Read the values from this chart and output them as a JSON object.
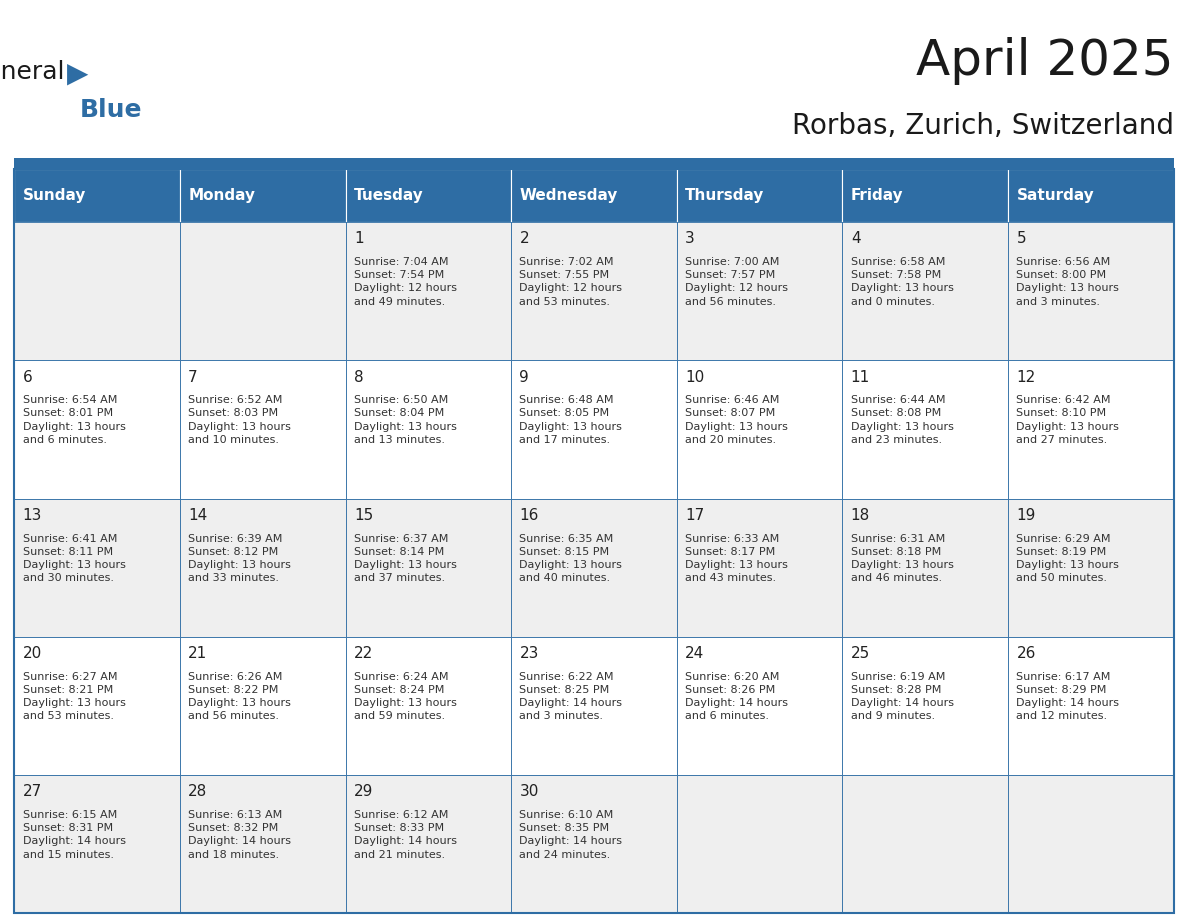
{
  "title": "April 2025",
  "subtitle": "Rorbas, Zurich, Switzerland",
  "header_color": "#2E6DA4",
  "header_text_color": "#FFFFFF",
  "cell_bg_even": "#EFEFEF",
  "cell_bg_odd": "#FFFFFF",
  "border_color": "#2E6DA4",
  "text_color": "#222222",
  "info_color": "#333333",
  "days_of_week": [
    "Sunday",
    "Monday",
    "Tuesday",
    "Wednesday",
    "Thursday",
    "Friday",
    "Saturday"
  ],
  "weeks": [
    [
      {
        "day": "",
        "info": ""
      },
      {
        "day": "",
        "info": ""
      },
      {
        "day": "1",
        "info": "Sunrise: 7:04 AM\nSunset: 7:54 PM\nDaylight: 12 hours\nand 49 minutes."
      },
      {
        "day": "2",
        "info": "Sunrise: 7:02 AM\nSunset: 7:55 PM\nDaylight: 12 hours\nand 53 minutes."
      },
      {
        "day": "3",
        "info": "Sunrise: 7:00 AM\nSunset: 7:57 PM\nDaylight: 12 hours\nand 56 minutes."
      },
      {
        "day": "4",
        "info": "Sunrise: 6:58 AM\nSunset: 7:58 PM\nDaylight: 13 hours\nand 0 minutes."
      },
      {
        "day": "5",
        "info": "Sunrise: 6:56 AM\nSunset: 8:00 PM\nDaylight: 13 hours\nand 3 minutes."
      }
    ],
    [
      {
        "day": "6",
        "info": "Sunrise: 6:54 AM\nSunset: 8:01 PM\nDaylight: 13 hours\nand 6 minutes."
      },
      {
        "day": "7",
        "info": "Sunrise: 6:52 AM\nSunset: 8:03 PM\nDaylight: 13 hours\nand 10 minutes."
      },
      {
        "day": "8",
        "info": "Sunrise: 6:50 AM\nSunset: 8:04 PM\nDaylight: 13 hours\nand 13 minutes."
      },
      {
        "day": "9",
        "info": "Sunrise: 6:48 AM\nSunset: 8:05 PM\nDaylight: 13 hours\nand 17 minutes."
      },
      {
        "day": "10",
        "info": "Sunrise: 6:46 AM\nSunset: 8:07 PM\nDaylight: 13 hours\nand 20 minutes."
      },
      {
        "day": "11",
        "info": "Sunrise: 6:44 AM\nSunset: 8:08 PM\nDaylight: 13 hours\nand 23 minutes."
      },
      {
        "day": "12",
        "info": "Sunrise: 6:42 AM\nSunset: 8:10 PM\nDaylight: 13 hours\nand 27 minutes."
      }
    ],
    [
      {
        "day": "13",
        "info": "Sunrise: 6:41 AM\nSunset: 8:11 PM\nDaylight: 13 hours\nand 30 minutes."
      },
      {
        "day": "14",
        "info": "Sunrise: 6:39 AM\nSunset: 8:12 PM\nDaylight: 13 hours\nand 33 minutes."
      },
      {
        "day": "15",
        "info": "Sunrise: 6:37 AM\nSunset: 8:14 PM\nDaylight: 13 hours\nand 37 minutes."
      },
      {
        "day": "16",
        "info": "Sunrise: 6:35 AM\nSunset: 8:15 PM\nDaylight: 13 hours\nand 40 minutes."
      },
      {
        "day": "17",
        "info": "Sunrise: 6:33 AM\nSunset: 8:17 PM\nDaylight: 13 hours\nand 43 minutes."
      },
      {
        "day": "18",
        "info": "Sunrise: 6:31 AM\nSunset: 8:18 PM\nDaylight: 13 hours\nand 46 minutes."
      },
      {
        "day": "19",
        "info": "Sunrise: 6:29 AM\nSunset: 8:19 PM\nDaylight: 13 hours\nand 50 minutes."
      }
    ],
    [
      {
        "day": "20",
        "info": "Sunrise: 6:27 AM\nSunset: 8:21 PM\nDaylight: 13 hours\nand 53 minutes."
      },
      {
        "day": "21",
        "info": "Sunrise: 6:26 AM\nSunset: 8:22 PM\nDaylight: 13 hours\nand 56 minutes."
      },
      {
        "day": "22",
        "info": "Sunrise: 6:24 AM\nSunset: 8:24 PM\nDaylight: 13 hours\nand 59 minutes."
      },
      {
        "day": "23",
        "info": "Sunrise: 6:22 AM\nSunset: 8:25 PM\nDaylight: 14 hours\nand 3 minutes."
      },
      {
        "day": "24",
        "info": "Sunrise: 6:20 AM\nSunset: 8:26 PM\nDaylight: 14 hours\nand 6 minutes."
      },
      {
        "day": "25",
        "info": "Sunrise: 6:19 AM\nSunset: 8:28 PM\nDaylight: 14 hours\nand 9 minutes."
      },
      {
        "day": "26",
        "info": "Sunrise: 6:17 AM\nSunset: 8:29 PM\nDaylight: 14 hours\nand 12 minutes."
      }
    ],
    [
      {
        "day": "27",
        "info": "Sunrise: 6:15 AM\nSunset: 8:31 PM\nDaylight: 14 hours\nand 15 minutes."
      },
      {
        "day": "28",
        "info": "Sunrise: 6:13 AM\nSunset: 8:32 PM\nDaylight: 14 hours\nand 18 minutes."
      },
      {
        "day": "29",
        "info": "Sunrise: 6:12 AM\nSunset: 8:33 PM\nDaylight: 14 hours\nand 21 minutes."
      },
      {
        "day": "30",
        "info": "Sunrise: 6:10 AM\nSunset: 8:35 PM\nDaylight: 14 hours\nand 24 minutes."
      },
      {
        "day": "",
        "info": ""
      },
      {
        "day": "",
        "info": ""
      },
      {
        "day": "",
        "info": ""
      }
    ]
  ],
  "logo_general_color": "#1a1a1a",
  "logo_blue_color": "#2E6DA4",
  "title_fontsize": 36,
  "subtitle_fontsize": 20,
  "dow_fontsize": 11,
  "day_num_fontsize": 11,
  "info_fontsize": 8
}
